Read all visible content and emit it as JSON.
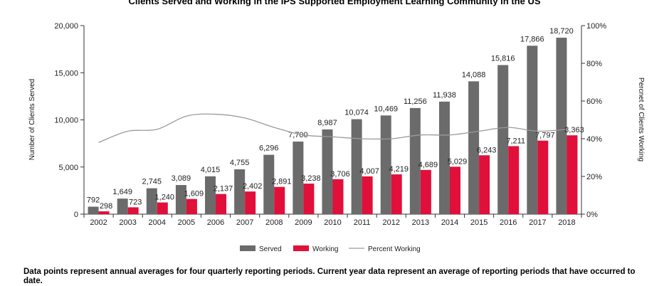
{
  "chart_data": {
    "type": "bar",
    "title": "Clients Served and Working in the IPS Supported Employment Learning Community in the US",
    "ylabel": "Number of Clients Served",
    "y2label": "Percnet of Clients Working",
    "ylim": [
      0,
      20000
    ],
    "y2lim": [
      0,
      100
    ],
    "yticks": [
      "0",
      "5,000",
      "10,000",
      "15,000",
      "20,000"
    ],
    "y2ticks": [
      "0%",
      "20%",
      "40%",
      "60%",
      "80%",
      "100%"
    ],
    "categories": [
      "2002",
      "2003",
      "2004",
      "2005",
      "2006",
      "2007",
      "2008",
      "2009",
      "2010",
      "2011",
      "2012",
      "2013",
      "2014",
      "2015",
      "2016",
      "2017",
      "2018"
    ],
    "series": [
      {
        "name": "Served",
        "color": "#6b6b6b",
        "values": [
          792,
          1649,
          2745,
          3089,
          4015,
          4755,
          6296,
          7700,
          8987,
          10074,
          10469,
          11256,
          11938,
          14088,
          15816,
          17866,
          18720
        ],
        "labels": [
          "792",
          "1,649",
          "2,745",
          "3,089",
          "4,015",
          "4,755",
          "6,296",
          "7,700",
          "8,987",
          "10,074",
          "10,469",
          "11,256",
          "11,938",
          "14,088",
          "15,816",
          "17,866",
          "18,720"
        ]
      },
      {
        "name": "Working",
        "color": "#e0103a",
        "values": [
          298,
          723,
          1240,
          1609,
          2137,
          2402,
          2891,
          3238,
          3706,
          4007,
          4219,
          4689,
          5029,
          6243,
          7211,
          7797,
          8363
        ],
        "labels": [
          "298",
          "723",
          "1,240",
          "1,609",
          "2,137",
          "2,402",
          "2,891",
          "3,238",
          "3,706",
          "4,007",
          "4,219",
          "4,689",
          "5,029",
          "6,243",
          "7,211",
          "7,797",
          "8,363"
        ]
      },
      {
        "name": "Percent Working",
        "color": "#9a9a9a",
        "type": "line",
        "axis": "right",
        "values": [
          38,
          44,
          45,
          52,
          53,
          51,
          46,
          42,
          41,
          40,
          40,
          42,
          42,
          44,
          46,
          44,
          45
        ]
      }
    ],
    "legend_position": "bottom",
    "grid": false
  },
  "footnote": "Data points represent annual averages for four quarterly reporting periods. Current year data represent an average of reporting periods that have occurred to date."
}
